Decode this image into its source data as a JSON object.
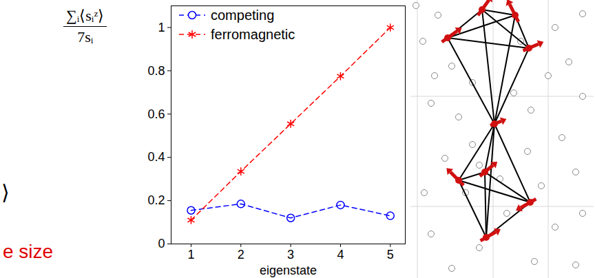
{
  "chart_data": {
    "type": "line",
    "xlabel": "eigenstate",
    "ylabel": [
      "∑ᵢ⟨sᵢᶻ⟩",
      "7sᵢ"
    ],
    "annotations": [
      "⟩",
      "e size"
    ],
    "x": [
      1,
      2,
      3,
      4,
      5
    ],
    "series": [
      {
        "name": "competing",
        "color": "#0000ff",
        "marker": "circle",
        "line_style": "dashed",
        "values": [
          0.155,
          0.185,
          0.12,
          0.18,
          0.13
        ]
      },
      {
        "name": "ferromagnetic",
        "color": "#ff0000",
        "marker": "star",
        "line_style": "dashed",
        "values": [
          0.11,
          0.335,
          0.555,
          0.775,
          1.0
        ]
      }
    ],
    "xlim": [
      0.6,
      5.3
    ],
    "xticks": [
      1,
      2,
      3,
      4,
      5
    ],
    "ylim": [
      0,
      1.1
    ],
    "yticks": [
      0,
      0.2,
      0.4,
      0.6,
      0.8,
      1
    ],
    "legend": "top-left",
    "grid": false
  }
}
